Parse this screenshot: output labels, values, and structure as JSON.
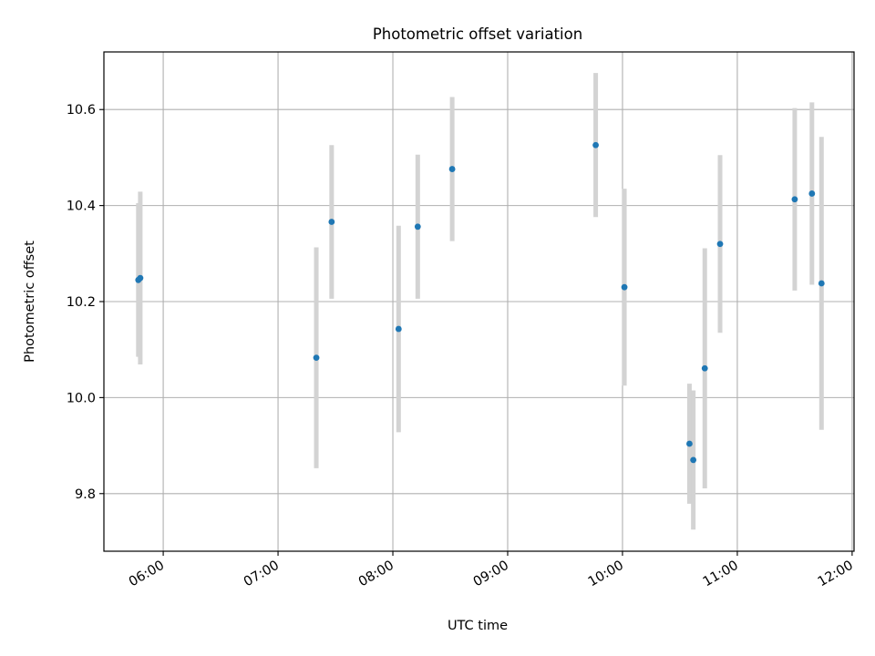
{
  "chart_data": {
    "type": "scatter",
    "title": "Photometric offset variation",
    "xlabel": "UTC time",
    "ylabel": "Photometric offset",
    "x_axis": {
      "type": "time",
      "range": [
        "05:29",
        "12:01"
      ],
      "ticks": [
        "06:00",
        "07:00",
        "08:00",
        "09:00",
        "10:00",
        "11:00",
        "12:00"
      ]
    },
    "y_axis": {
      "range": [
        9.68,
        10.72
      ],
      "ticks": [
        9.8,
        10.0,
        10.2,
        10.4,
        10.6
      ],
      "tick_labels": [
        "9.8",
        "10.0",
        "10.2",
        "10.4",
        "10.6"
      ]
    },
    "grid": true,
    "marker_color": "#1f77b4",
    "errorbar_color": "#d3d3d3",
    "points": [
      {
        "x": "05:47",
        "y": 10.245,
        "err": 0.16
      },
      {
        "x": "05:48",
        "y": 10.249,
        "err": 0.18
      },
      {
        "x": "07:20",
        "y": 10.083,
        "err": 0.23
      },
      {
        "x": "07:28",
        "y": 10.366,
        "err": 0.16
      },
      {
        "x": "08:03",
        "y": 10.143,
        "err": 0.215
      },
      {
        "x": "08:13",
        "y": 10.356,
        "err": 0.15
      },
      {
        "x": "08:31",
        "y": 10.476,
        "err": 0.15
      },
      {
        "x": "09:46",
        "y": 10.526,
        "err": 0.15
      },
      {
        "x": "10:01",
        "y": 10.23,
        "err": 0.205
      },
      {
        "x": "10:35",
        "y": 9.904,
        "err": 0.125
      },
      {
        "x": "10:37",
        "y": 9.87,
        "err": 0.145
      },
      {
        "x": "10:43",
        "y": 10.061,
        "err": 0.25
      },
      {
        "x": "10:51",
        "y": 10.32,
        "err": 0.185
      },
      {
        "x": "11:30",
        "y": 10.413,
        "err": 0.19
      },
      {
        "x": "11:39",
        "y": 10.425,
        "err": 0.19
      },
      {
        "x": "11:44",
        "y": 10.238,
        "err": 0.305
      }
    ]
  }
}
